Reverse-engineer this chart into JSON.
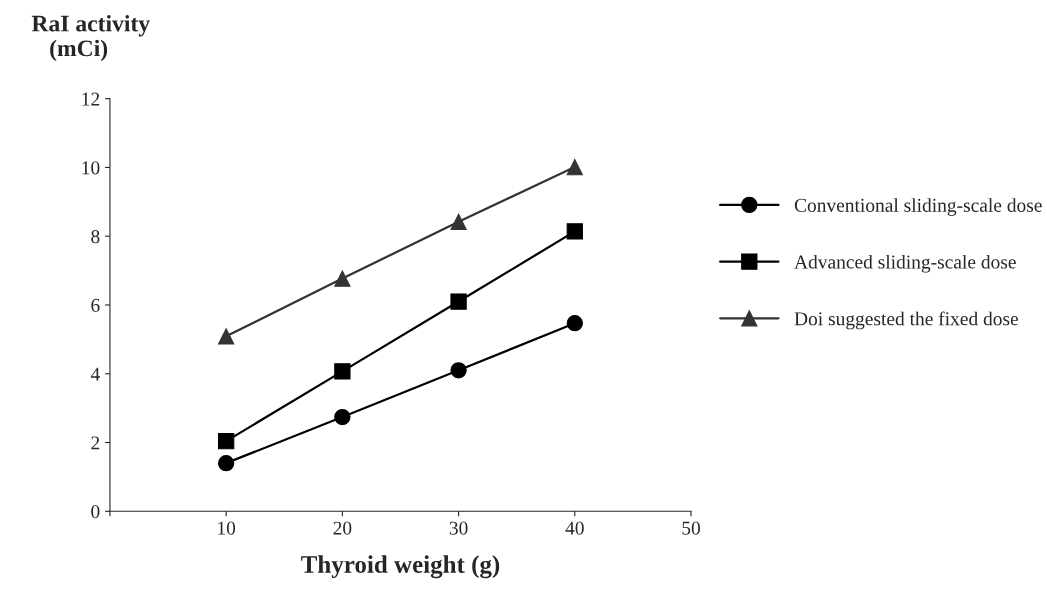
{
  "chart_data": {
    "type": "line",
    "xlabel": "Thyroid weight (g)",
    "ylabel": "RaI activity (mCi)",
    "x": [
      10,
      20,
      30,
      40
    ],
    "xlim": [
      0,
      50
    ],
    "xticks": [
      {
        "value": 0,
        "label": null
      },
      10,
      20,
      30,
      40,
      50
    ],
    "ylim": [
      0,
      12
    ],
    "yticks": [
      0,
      2,
      4,
      6,
      8,
      10,
      12
    ],
    "grid": false,
    "legend": "right",
    "series": [
      {
        "name": "Conventional sliding-scale dose",
        "color": "#000000",
        "marker": "circle",
        "values": [
          1.4,
          2.74,
          4.1,
          5.47
        ]
      },
      {
        "name": "Advanced sliding-scale dose",
        "color": "#000000",
        "marker": "square",
        "values": [
          2.04,
          4.07,
          6.1,
          8.14
        ]
      },
      {
        "name": "Doi suggested the fixed dose",
        "color": "#333333",
        "marker": "triangle",
        "values": [
          5.09,
          6.77,
          8.42,
          10.01
        ]
      }
    ]
  }
}
